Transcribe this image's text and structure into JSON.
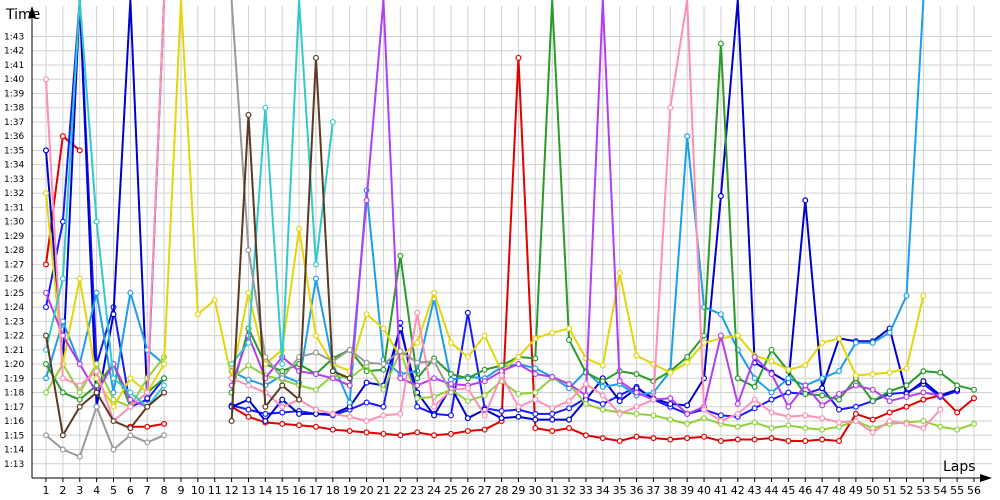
{
  "chart_data": {
    "type": "line",
    "title": "",
    "xlabel": "Laps",
    "ylabel": "Time",
    "grid": true,
    "legend": "none",
    "x": [
      1,
      2,
      3,
      4,
      5,
      6,
      7,
      8,
      9,
      10,
      11,
      12,
      13,
      14,
      15,
      16,
      17,
      18,
      19,
      20,
      21,
      22,
      23,
      24,
      25,
      26,
      27,
      28,
      29,
      30,
      31,
      32,
      33,
      34,
      35,
      36,
      37,
      38,
      39,
      40,
      41,
      42,
      43,
      44,
      45,
      46,
      47,
      48,
      49,
      50,
      51,
      52,
      53,
      54,
      55,
      56
    ],
    "xlim": [
      1,
      56
    ],
    "ylim": [
      72.0,
      105.0
    ],
    "y_tick_values": [
      73,
      74,
      75,
      76,
      77,
      78,
      79,
      80,
      81,
      82,
      83,
      84,
      85,
      86,
      87,
      88,
      89,
      90,
      91,
      92,
      93,
      94,
      95,
      96,
      97,
      98,
      99,
      100,
      101,
      102,
      103
    ],
    "y_tick_labels": [
      "1:13",
      "1:14",
      "1:15",
      "1:16",
      "1:17",
      "1:18",
      "1:19",
      "1:20",
      "1:21",
      "1:22",
      "1:23",
      "1:24",
      "1:25",
      "1:26",
      "1:27",
      "1:28",
      "1:29",
      "1:30",
      "1:31",
      "1:32",
      "1:33",
      "1:34",
      "1:35",
      "1:36",
      "1:37",
      "1:38",
      "1:39",
      "1:40",
      "1:41",
      "1:42",
      "1:43"
    ],
    "series": [
      {
        "color": "#e00000",
        "values": [
          87.0,
          96.0,
          95.0,
          null,
          null,
          75.6,
          75.6,
          75.8,
          null,
          null,
          null,
          77.0,
          76.3,
          75.9,
          75.8,
          75.7,
          75.6,
          75.4,
          75.3,
          75.2,
          75.1,
          75.0,
          75.2,
          75.0,
          75.1,
          75.3,
          75.4,
          76.0,
          101.5,
          75.5,
          75.3,
          75.5,
          75.0,
          74.8,
          74.6,
          74.9,
          74.8,
          74.7,
          74.8,
          74.9,
          74.6,
          74.7,
          74.7,
          74.8,
          74.6,
          74.6,
          74.7,
          74.6,
          76.5,
          76.1,
          76.6,
          77.0,
          77.5,
          77.8,
          76.6,
          77.6
        ]
      },
      {
        "color": "#1a1aff",
        "values": [
          84.0,
          90.0,
          106.0,
          80.0,
          84.0,
          77.0,
          77.5,
          79.0,
          null,
          null,
          null,
          77.1,
          76.8,
          76.5,
          76.6,
          76.7,
          76.5,
          76.4,
          76.8,
          77.3,
          77.0,
          82.9,
          77.0,
          76.5,
          76.4,
          83.6,
          76.9,
          76.7,
          76.8,
          76.5,
          76.5,
          76.9,
          77.6,
          77.2,
          77.8,
          78.4,
          77.5,
          77.0,
          76.5,
          76.8,
          76.4,
          76.3,
          76.9,
          77.5,
          78.0,
          77.9,
          78.3,
          76.8,
          77.0,
          77.4,
          77.9,
          78.0,
          78.6,
          77.7,
          78.1,
          null
        ]
      },
      {
        "color": "#0000cc",
        "values": [
          95.0,
          80.0,
          106.0,
          77.0,
          83.5,
          106.0,
          77.6,
          106.0,
          null,
          null,
          null,
          77.0,
          77.5,
          76.0,
          77.5,
          76.5,
          76.5,
          76.5,
          77.0,
          78.7,
          78.5,
          82.5,
          78.0,
          76.4,
          78.4,
          76.2,
          76.8,
          76.2,
          76.3,
          76.1,
          76.1,
          76.1,
          77.5,
          79.0,
          77.4,
          78.3,
          77.6,
          77.2,
          77.1,
          79.0,
          91.8,
          106.0,
          80.1,
          79.4,
          78.7,
          91.5,
          78.3,
          81.8,
          81.6,
          81.6,
          82.5,
          77.9,
          78.8,
          77.8,
          78.2,
          null
        ]
      },
      {
        "color": "#1e9eea",
        "values": [
          79.0,
          83.0,
          80.0,
          85.0,
          78.0,
          85.0,
          81.0,
          80.0,
          null,
          null,
          null,
          79.5,
          78.9,
          78.5,
          79.2,
          78.7,
          86.0,
          80.0,
          77.3,
          92.2,
          80.3,
          79.3,
          79.5,
          84.6,
          78.9,
          79.1,
          79.0,
          79.8,
          80.0,
          79.7,
          79.1,
          78.3,
          79.5,
          78.4,
          78.6,
          77.8,
          78.0,
          79.5,
          96.0,
          84.0,
          83.5,
          81.0,
          79.0,
          78.0,
          79.0,
          78.5,
          79.0,
          79.5,
          81.5,
          81.5,
          82.2,
          84.8,
          106.0,
          null,
          null,
          null
        ]
      },
      {
        "color": "#2a9b2a",
        "values": [
          80.0,
          78.0,
          77.5,
          78.5,
          80.0,
          77.0,
          78.0,
          79.0,
          null,
          null,
          null,
          78.0,
          82.5,
          80.0,
          79.5,
          80.0,
          79.3,
          80.4,
          81.0,
          79.5,
          79.6,
          87.6,
          79.0,
          80.4,
          79.3,
          79.0,
          79.6,
          79.9,
          80.5,
          80.4,
          106.0,
          81.7,
          79.4,
          78.8,
          79.5,
          79.3,
          78.8,
          79.5,
          80.5,
          82.0,
          102.5,
          79.0,
          78.4,
          81.0,
          79.5,
          77.9,
          77.8,
          77.5,
          79.0,
          77.4,
          78.1,
          78.5,
          79.5,
          79.4,
          78.5,
          78.2
        ]
      },
      {
        "color": "#8ed13a",
        "values": [
          78.0,
          80.0,
          78.0,
          80.0,
          77.5,
          77.0,
          79.0,
          80.5,
          null,
          null,
          null,
          79.0,
          79.9,
          79.2,
          78.9,
          78.5,
          78.2,
          79.2,
          79.0,
          79.9,
          78.2,
          80.9,
          77.6,
          77.7,
          78.2,
          77.4,
          77.8,
          78.8,
          77.9,
          78.0,
          79.0,
          78.6,
          77.2,
          76.8,
          76.6,
          76.5,
          76.4,
          76.1,
          75.8,
          76.2,
          75.8,
          75.6,
          75.9,
          75.5,
          75.7,
          75.5,
          75.4,
          75.6,
          76.0,
          75.5,
          75.8,
          75.9,
          76.0,
          75.6,
          75.4,
          75.8
        ]
      },
      {
        "color": "#e2d60a",
        "values": [
          92.0,
          80.0,
          86.0,
          79.0,
          77.0,
          79.0,
          78.0,
          80.0,
          106.0,
          83.5,
          84.5,
          79.0,
          85.0,
          80.0,
          81.0,
          89.5,
          82.0,
          80.0,
          79.5,
          83.5,
          82.5,
          80.5,
          81.5,
          85.0,
          81.5,
          80.5,
          82.0,
          79.5,
          80.5,
          81.8,
          82.2,
          82.5,
          80.4,
          79.9,
          86.4,
          80.6,
          80.0,
          79.4,
          80.1,
          81.5,
          81.8,
          82.0,
          80.6,
          80.2,
          79.6,
          79.9,
          81.5,
          81.8,
          79.2,
          79.3,
          79.4,
          79.7,
          84.8,
          null,
          null,
          null
        ]
      },
      {
        "color": "#b33ef0",
        "values": [
          85.0,
          82.0,
          80.0,
          78.0,
          80.0,
          77.5,
          77.0,
          78.0,
          null,
          null,
          null,
          78.5,
          82.0,
          79.0,
          80.5,
          79.5,
          79.3,
          79.0,
          78.5,
          91.5,
          106.0,
          79.0,
          78.5,
          79.0,
          78.6,
          78.5,
          78.8,
          79.5,
          80.0,
          79.3,
          79.1,
          78.6,
          77.8,
          106.0,
          78.8,
          78.0,
          77.5,
          77.6,
          76.5,
          77.0,
          82.0,
          77.2,
          80.5,
          79.3,
          77.0,
          78.5,
          77.1,
          77.9,
          78.5,
          78.2,
          77.4,
          77.7,
          78.0,
          77.8,
          null,
          null
        ]
      },
      {
        "color": "#ff8fb5",
        "values": [
          100.0,
          79.0,
          78.5,
          79.5,
          76.0,
          77.0,
          78.0,
          106.0,
          null,
          null,
          null,
          79.0,
          78.5,
          78.0,
          77.0,
          77.5,
          76.8,
          76.5,
          76.3,
          76.0,
          76.4,
          76.5,
          83.6,
          77.0,
          78.2,
          78.3,
          76.4,
          79.2,
          77.0,
          77.5,
          76.9,
          77.4,
          78.6,
          77.8,
          76.5,
          77.0,
          77.5,
          98.0,
          106.0,
          76.8,
          76.0,
          76.5,
          77.5,
          76.6,
          76.3,
          76.4,
          76.2,
          75.9,
          76.0,
          75.2,
          76.0,
          75.8,
          75.5,
          76.8,
          null,
          null
        ]
      },
      {
        "color": "#34c9c9",
        "values": [
          81.0,
          86.0,
          106.0,
          90.0,
          79.0,
          78.0,
          77.0,
          78.5,
          null,
          null,
          null,
          80.0,
          81.5,
          98.0,
          80.0,
          106.0,
          87.0,
          97.0,
          null,
          null,
          null,
          null,
          null,
          null,
          null,
          null,
          null,
          null,
          null,
          null,
          null,
          null,
          null,
          null,
          null,
          null,
          null,
          null,
          null,
          null,
          null,
          null,
          null,
          null,
          null,
          null,
          null,
          null,
          null,
          null,
          null,
          null,
          null,
          null,
          null,
          null
        ]
      },
      {
        "color": "#999999",
        "values": [
          75.0,
          74.0,
          73.5,
          77.0,
          74.0,
          75.0,
          74.5,
          75.0,
          null,
          null,
          null,
          106.0,
          88.0,
          80.5,
          79.0,
          80.5,
          80.8,
          80.2,
          81.0,
          80.1,
          80.0,
          80.9,
          80.1,
          80.2,
          78.0,
          null,
          null,
          null,
          null,
          null,
          null,
          null,
          null,
          null,
          null,
          null,
          null,
          null,
          null,
          null,
          null,
          null,
          null,
          null,
          null,
          null,
          null,
          null,
          null,
          null,
          null,
          null,
          null,
          null,
          null,
          null
        ]
      },
      {
        "color": "#5a3a22",
        "values": [
          82.0,
          75.0,
          77.0,
          78.0,
          76.0,
          75.5,
          77.0,
          78.0,
          null,
          null,
          null,
          76.0,
          97.5,
          77.0,
          78.5,
          77.5,
          101.5,
          79.5,
          79.0,
          null,
          null,
          null,
          null,
          null,
          null,
          null,
          null,
          null,
          null,
          null,
          null,
          null,
          null,
          null,
          null,
          null,
          null,
          null,
          null,
          null,
          null,
          null,
          null,
          null,
          null,
          null,
          null,
          null,
          null,
          null,
          null,
          null,
          null,
          null,
          null,
          null
        ]
      }
    ]
  }
}
